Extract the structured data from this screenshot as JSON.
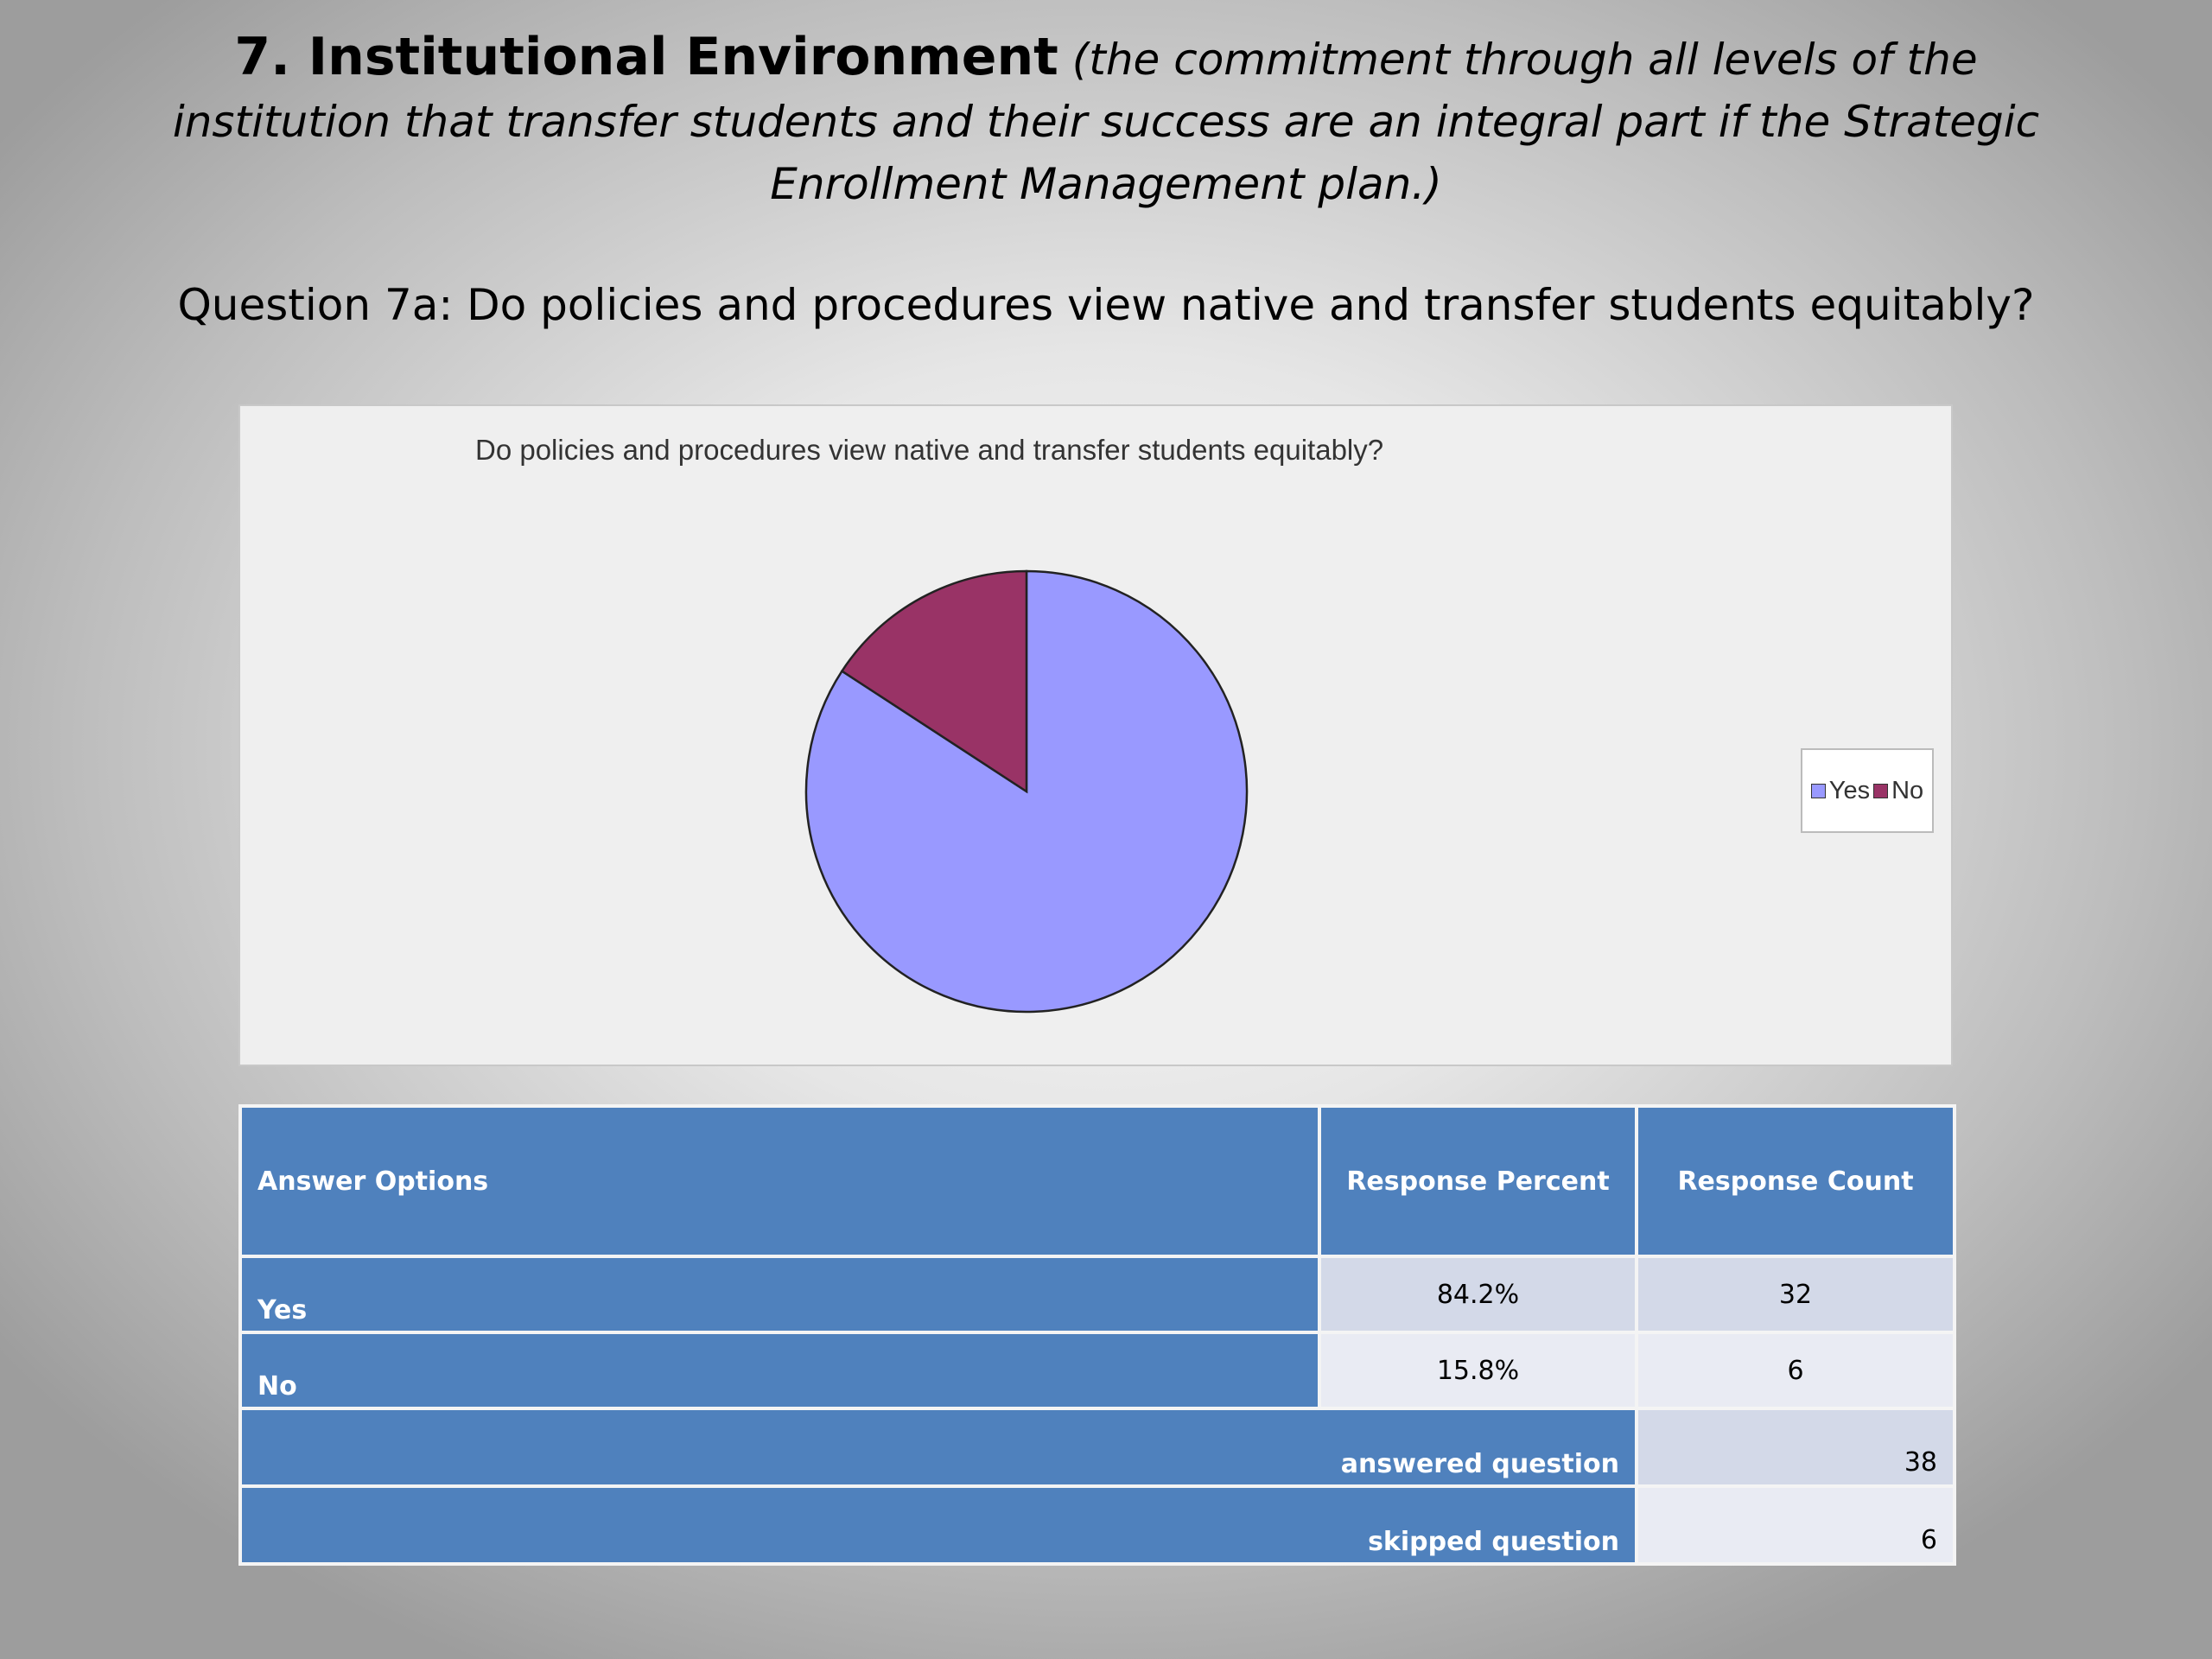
{
  "slide": {
    "title_main": "7. Institutional Environment",
    "title_sub": "(the commitment through all levels of the institution that transfer students and their success are an integral part if the Strategic Enrollment Management plan.)",
    "question": "Question 7a:  Do policies and procedures view native and transfer students equitably?"
  },
  "chart_data": {
    "type": "pie",
    "title": "Do policies and procedures view native and transfer students equitably?",
    "categories": [
      "Yes",
      "No"
    ],
    "values": [
      84.2,
      15.8
    ],
    "colors": [
      "#9999ff",
      "#993366"
    ],
    "legend": [
      "Yes",
      "No"
    ],
    "legend_position": "right"
  },
  "table": {
    "headers": [
      "Answer Options",
      "Response Percent",
      "Response Count"
    ],
    "rows": [
      {
        "option": "Yes",
        "percent": "84.2%",
        "count": "32"
      },
      {
        "option": "No",
        "percent": "15.8%",
        "count": "6"
      }
    ],
    "answered_label": "answered question",
    "answered_value": "38",
    "skipped_label": "skipped question",
    "skipped_value": "6"
  }
}
